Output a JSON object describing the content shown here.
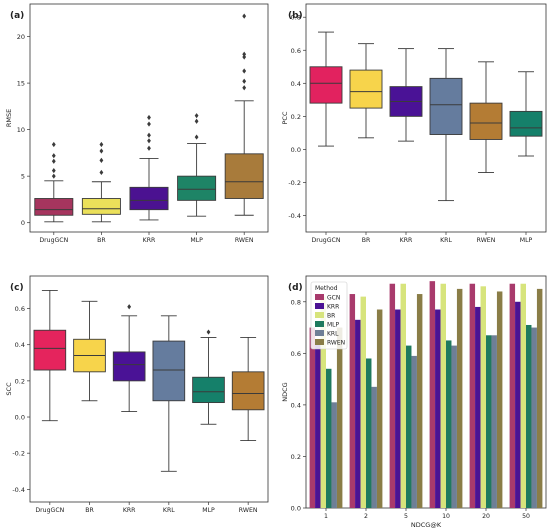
{
  "figure": {
    "panel_labels": [
      "(a)",
      "(b)",
      "(c)",
      "(d)"
    ]
  },
  "chart_data": [
    {
      "panel": "(a)",
      "type": "box",
      "title": "",
      "xlabel": "",
      "ylabel": "RMSE",
      "ylim": [
        -1,
        23.5
      ],
      "yticks": [
        0,
        5,
        10,
        15,
        20
      ],
      "grid": false,
      "categories": [
        "DrugGCN",
        "BR",
        "KRR",
        "MLP",
        "RWEN"
      ],
      "colors": [
        "#a6355e",
        "#ebe05a",
        "#4b1291",
        "#1e8466",
        "#a87b3b"
      ],
      "boxes": [
        {
          "q1": 0.8,
          "median": 1.4,
          "q3": 2.6,
          "whisker_low": 0.1,
          "whisker_high": 4.5,
          "outliers": [
            5.0,
            5.6,
            6.6,
            7.2,
            8.4
          ]
        },
        {
          "q1": 0.9,
          "median": 1.5,
          "q3": 2.6,
          "whisker_low": 0.1,
          "whisker_high": 4.4,
          "outliers": [
            5.4,
            6.7,
            7.7,
            8.4
          ]
        },
        {
          "q1": 1.4,
          "median": 2.4,
          "q3": 3.8,
          "whisker_low": 0.3,
          "whisker_high": 6.9,
          "outliers": [
            8.0,
            8.8,
            9.4,
            10.6,
            11.3
          ]
        },
        {
          "q1": 2.4,
          "median": 3.6,
          "q3": 5.0,
          "whisker_low": 0.7,
          "whisker_high": 8.5,
          "outliers": [
            9.2,
            10.9,
            11.5
          ]
        },
        {
          "q1": 2.6,
          "median": 4.4,
          "q3": 7.4,
          "whisker_low": 0.8,
          "whisker_high": 13.1,
          "outliers": [
            14.5,
            15.2,
            16.3,
            17.8,
            18.1,
            22.2
          ]
        }
      ]
    },
    {
      "panel": "(b)",
      "type": "box",
      "title": "",
      "xlabel": "",
      "ylabel": "PCC",
      "ylim": [
        -0.5,
        0.88
      ],
      "yticks": [
        -0.4,
        -0.2,
        0.0,
        0.2,
        0.4,
        0.6,
        0.8
      ],
      "grid": false,
      "categories": [
        "DrugGCN",
        "BR",
        "KRR",
        "KRL",
        "RWEN",
        "MLP"
      ],
      "colors": [
        "#e2225f",
        "#f7d44b",
        "#4a1296",
        "#657c9e",
        "#b47c34",
        "#15806a"
      ],
      "boxes": [
        {
          "q1": 0.28,
          "median": 0.4,
          "q3": 0.5,
          "whisker_low": 0.02,
          "whisker_high": 0.71,
          "outliers": []
        },
        {
          "q1": 0.25,
          "median": 0.35,
          "q3": 0.48,
          "whisker_low": 0.07,
          "whisker_high": 0.64,
          "outliers": []
        },
        {
          "q1": 0.2,
          "median": 0.29,
          "q3": 0.38,
          "whisker_low": 0.05,
          "whisker_high": 0.61,
          "outliers": []
        },
        {
          "q1": 0.09,
          "median": 0.27,
          "q3": 0.43,
          "whisker_low": -0.31,
          "whisker_high": 0.61,
          "outliers": []
        },
        {
          "q1": 0.06,
          "median": 0.16,
          "q3": 0.28,
          "whisker_low": -0.14,
          "whisker_high": 0.53,
          "outliers": []
        },
        {
          "q1": 0.08,
          "median": 0.13,
          "q3": 0.23,
          "whisker_low": -0.04,
          "whisker_high": 0.47,
          "outliers": []
        }
      ]
    },
    {
      "panel": "(c)",
      "type": "box",
      "title": "",
      "xlabel": "",
      "ylabel": "SCC",
      "ylim": [
        -0.47,
        0.78
      ],
      "yticks": [
        -0.4,
        -0.2,
        0.0,
        0.2,
        0.4,
        0.6
      ],
      "grid": false,
      "categories": [
        "DrugGCN",
        "BR",
        "KRR",
        "KRL",
        "MLP",
        "RWEN"
      ],
      "colors": [
        "#e5245d",
        "#f7d44b",
        "#4a1296",
        "#657c9e",
        "#15806a",
        "#b47c34"
      ],
      "boxes": [
        {
          "q1": 0.26,
          "median": 0.38,
          "q3": 0.48,
          "whisker_low": -0.02,
          "whisker_high": 0.7,
          "outliers": []
        },
        {
          "q1": 0.25,
          "median": 0.34,
          "q3": 0.43,
          "whisker_low": 0.09,
          "whisker_high": 0.64,
          "outliers": []
        },
        {
          "q1": 0.2,
          "median": 0.29,
          "q3": 0.36,
          "whisker_low": 0.03,
          "whisker_high": 0.56,
          "outliers": [
            0.61
          ]
        },
        {
          "q1": 0.09,
          "median": 0.26,
          "q3": 0.42,
          "whisker_low": -0.3,
          "whisker_high": 0.56,
          "outliers": []
        },
        {
          "q1": 0.08,
          "median": 0.14,
          "q3": 0.22,
          "whisker_low": -0.04,
          "whisker_high": 0.44,
          "outliers": [
            0.47
          ]
        },
        {
          "q1": 0.04,
          "median": 0.13,
          "q3": 0.25,
          "whisker_low": -0.13,
          "whisker_high": 0.44,
          "outliers": []
        }
      ]
    },
    {
      "panel": "(d)",
      "type": "bar",
      "title": "",
      "xlabel": "NDCG@K",
      "ylabel": "NDCG",
      "ylim": [
        0,
        0.9
      ],
      "yticks": [
        0.0,
        0.2,
        0.4,
        0.6,
        0.8
      ],
      "grid": false,
      "legend": {
        "title": "Method",
        "position": "top-left"
      },
      "categories": [
        "1",
        "2",
        "5",
        "10",
        "20",
        "50"
      ],
      "series": [
        {
          "name": "GCN",
          "color": "#a83a6c",
          "values": [
            0.7,
            0.83,
            0.87,
            0.88,
            0.87,
            0.87
          ]
        },
        {
          "name": "KRR",
          "color": "#4b1394",
          "values": [
            0.65,
            0.73,
            0.77,
            0.77,
            0.78,
            0.8
          ]
        },
        {
          "name": "BR",
          "color": "#d7e47c",
          "values": [
            0.82,
            0.82,
            0.87,
            0.87,
            0.86,
            0.87
          ]
        },
        {
          "name": "MLP",
          "color": "#1f7a5e",
          "values": [
            0.54,
            0.58,
            0.63,
            0.65,
            0.67,
            0.71
          ]
        },
        {
          "name": "KRL",
          "color": "#6e7f96",
          "values": [
            0.41,
            0.47,
            0.59,
            0.63,
            0.67,
            0.7
          ]
        },
        {
          "name": "RWEN",
          "color": "#8a7d47",
          "values": [
            0.7,
            0.77,
            0.83,
            0.85,
            0.84,
            0.85
          ]
        }
      ]
    }
  ]
}
